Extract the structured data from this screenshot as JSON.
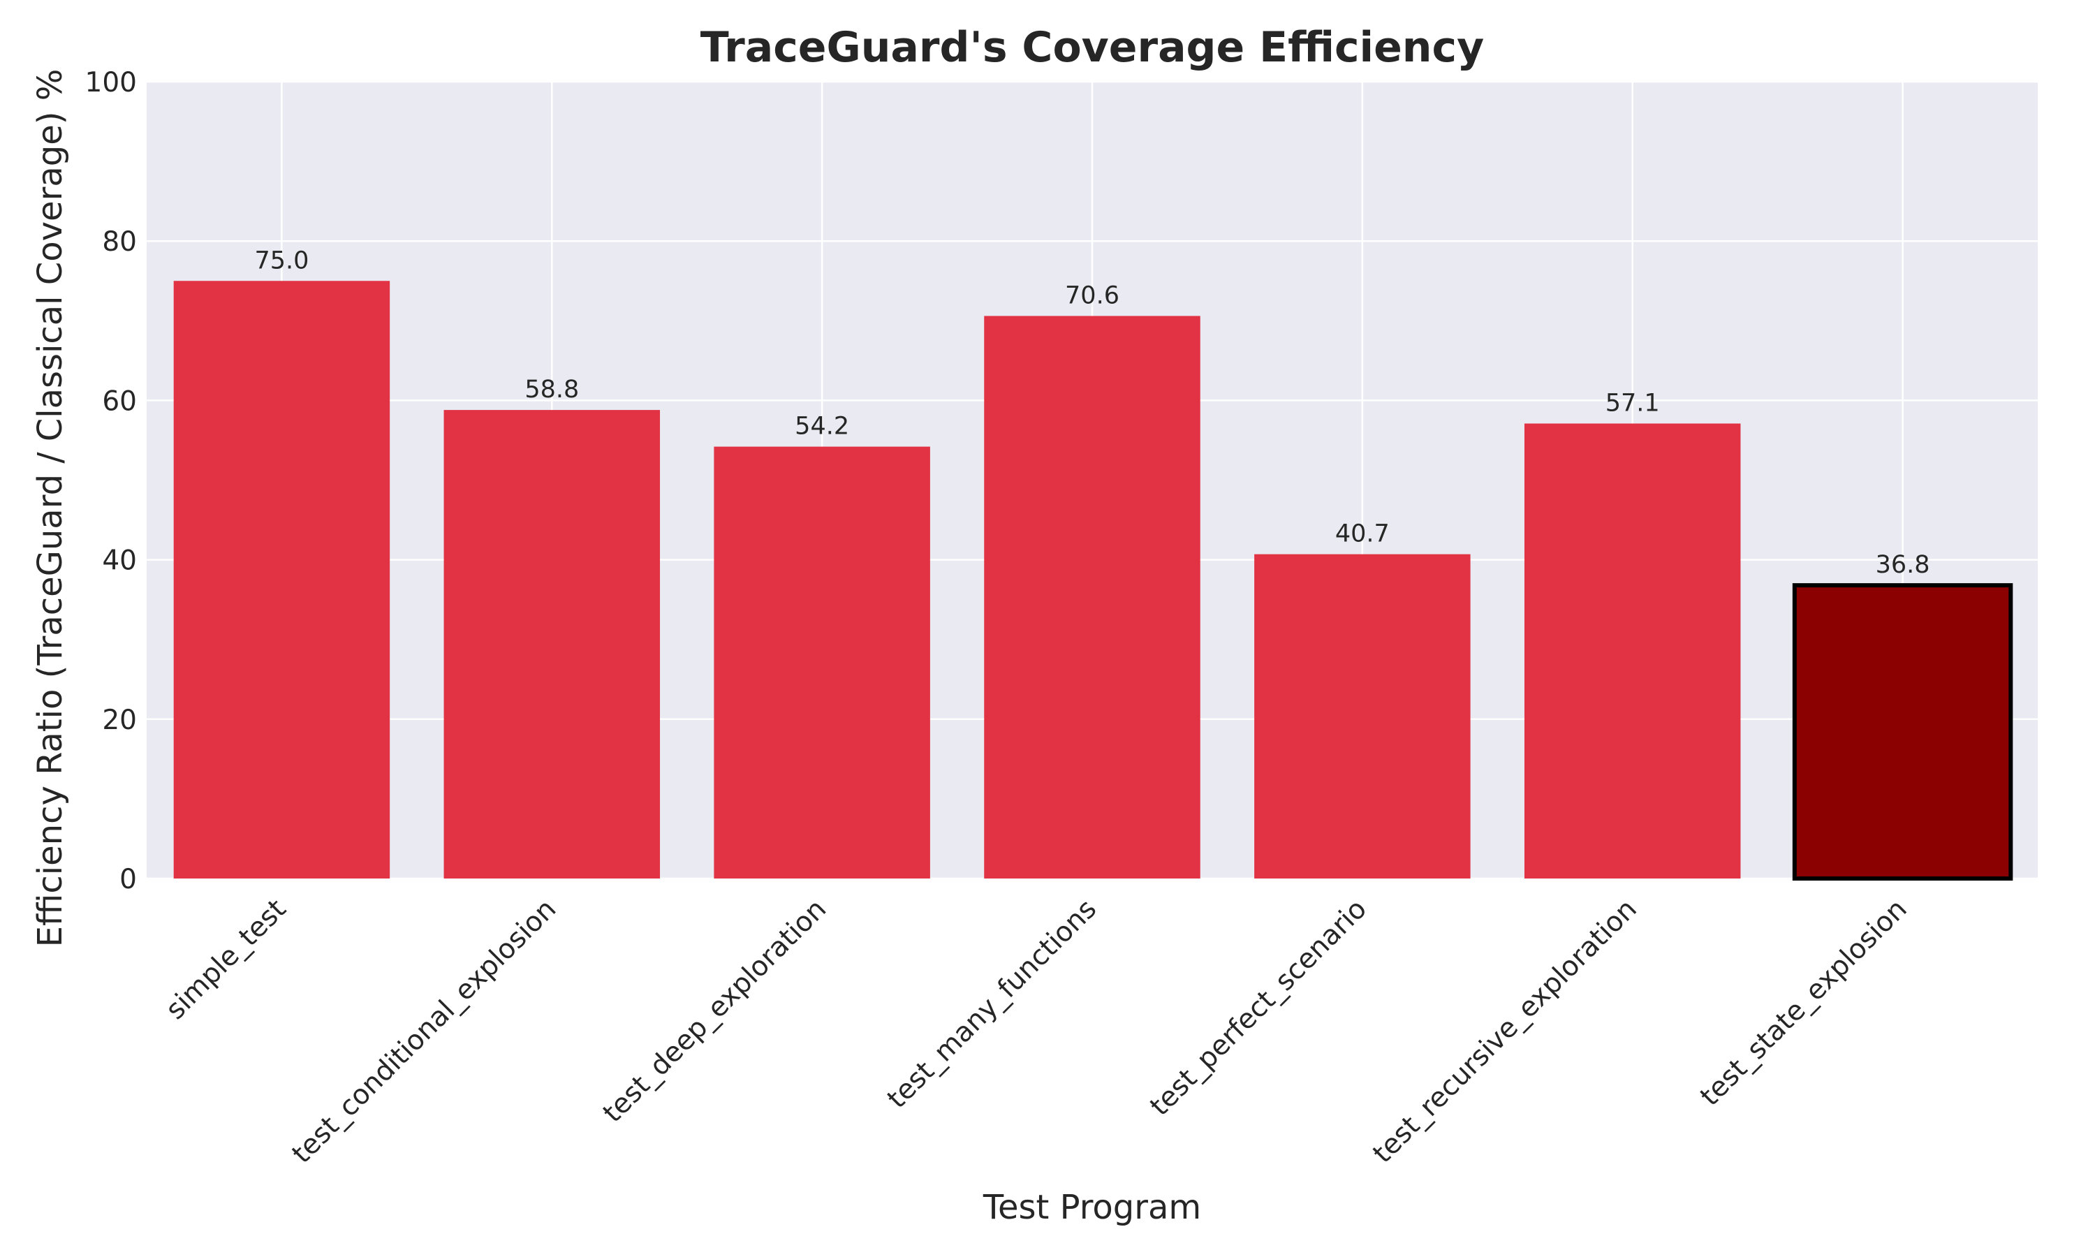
{
  "chart_data": {
    "type": "bar",
    "title": "TraceGuard's Coverage Efficiency",
    "xlabel": "Test Program",
    "ylabel": "Efficiency Ratio (TraceGuard / Classical Coverage) %",
    "categories": [
      "simple_test",
      "test_conditional_explosion",
      "test_deep_exploration",
      "test_many_functions",
      "test_perfect_scenario",
      "test_recursive_exploration",
      "test_state_explosion"
    ],
    "values": [
      75.0,
      58.8,
      54.2,
      70.6,
      40.7,
      57.1,
      36.8
    ],
    "value_labels": [
      "75.0",
      "58.8",
      "54.2",
      "70.6",
      "40.7",
      "57.1",
      "36.8"
    ],
    "highlighted_category": "test_state_explosion",
    "ylim": [
      0,
      100
    ],
    "yticks": [
      0,
      20,
      40,
      60,
      80,
      100
    ],
    "grid": true,
    "colors": {
      "bar": "#e23344",
      "highlight_bar": "#8b0000",
      "highlight_edge": "#000000",
      "plot_background": "#eaeaf2",
      "grid": "#ffffff",
      "text": "#262626"
    }
  }
}
